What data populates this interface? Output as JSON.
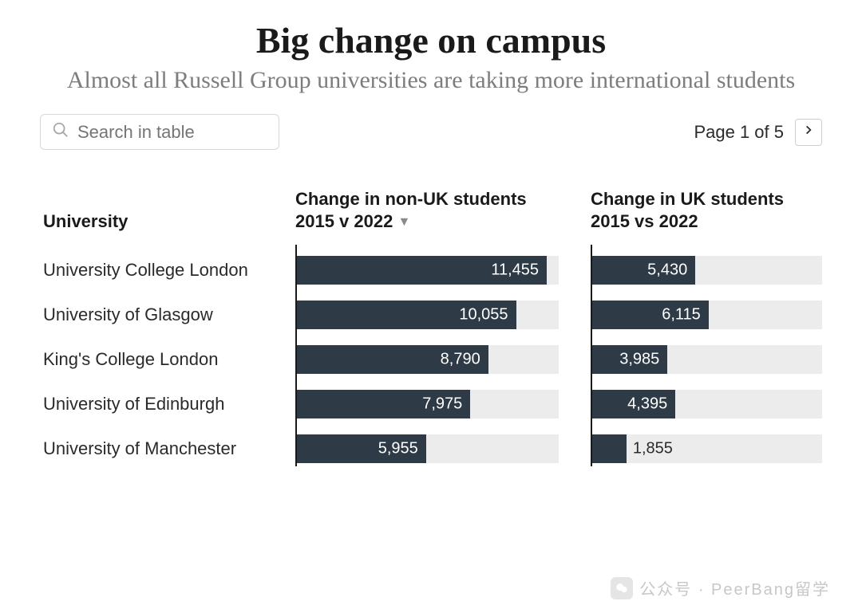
{
  "title": {
    "text": "Big change on campus",
    "fontsize": 46,
    "color": "#1a1a1a",
    "weight": 700
  },
  "subtitle": {
    "text": "Almost all Russell Group universities are taking more international students",
    "fontsize": 30,
    "color": "#7d7d7d"
  },
  "search": {
    "placeholder": "Search in table"
  },
  "pager": {
    "text": "Page 1 of 5"
  },
  "columns": {
    "university": "University",
    "col_a": "Change in non-UK students 2015 v 2022",
    "col_b": "Change in UK students 2015 vs 2022",
    "sort_indicator": "▼"
  },
  "chart": {
    "type": "bar",
    "bar_color": "#2e3a46",
    "track_color": "#ececec",
    "label_inside_color": "#ffffff",
    "label_outside_color": "#2a2a2a",
    "col_a_max": 12000,
    "col_b_max": 12000,
    "axis_color": "#1a1a1a"
  },
  "rows": [
    {
      "name": "University College London",
      "a": 11455,
      "a_label": "11,455",
      "b": 5430,
      "b_label": "5,430"
    },
    {
      "name": "University of Glasgow",
      "a": 10055,
      "a_label": "10,055",
      "b": 6115,
      "b_label": "6,115"
    },
    {
      "name": "King's College London",
      "a": 8790,
      "a_label": "8,790",
      "b": 3985,
      "b_label": "3,985"
    },
    {
      "name": "University of Edinburgh",
      "a": 7975,
      "a_label": "7,975",
      "b": 4395,
      "b_label": "4,395"
    },
    {
      "name": "University of Manchester",
      "a": 5955,
      "a_label": "5,955",
      "b": 1855,
      "b_label": "1,855"
    }
  ],
  "watermark": {
    "text": "公众号 · PeerBang留学"
  }
}
